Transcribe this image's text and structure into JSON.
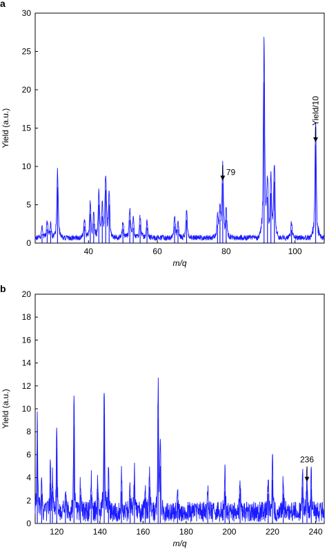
{
  "panels": [
    {
      "label": "a",
      "chart_data": {
        "type": "line",
        "xlabel": "m/q",
        "ylabel": "Yield (a.u.)",
        "xlim": [
          24.5,
          108.5
        ],
        "ylim": [
          0,
          30
        ],
        "xticks": [
          40,
          60,
          80,
          100
        ],
        "yticks": [
          0,
          5,
          10,
          15,
          20,
          25,
          30
        ],
        "grid": false,
        "color": "#1a1aff",
        "baseline": 0.7,
        "noise": 0.35,
        "seed": 7,
        "peaks": [
          {
            "x": 26.5,
            "h": 1.2
          },
          {
            "x": 28,
            "h": 1.8
          },
          {
            "x": 29,
            "h": 1.6
          },
          {
            "x": 31,
            "h": 7.3
          },
          {
            "x": 38.8,
            "h": 2.2
          },
          {
            "x": 40.5,
            "h": 3.8
          },
          {
            "x": 41.5,
            "h": 2.5
          },
          {
            "x": 43,
            "h": 5.0
          },
          {
            "x": 44,
            "h": 3.5
          },
          {
            "x": 45,
            "h": 6.9
          },
          {
            "x": 46,
            "h": 5.0
          },
          {
            "x": 50,
            "h": 1.8
          },
          {
            "x": 52,
            "h": 3.0
          },
          {
            "x": 53,
            "h": 2.0
          },
          {
            "x": 55,
            "h": 2.4
          },
          {
            "x": 57,
            "h": 2.0
          },
          {
            "x": 65,
            "h": 2.2
          },
          {
            "x": 66,
            "h": 1.8
          },
          {
            "x": 68.5,
            "h": 3.0
          },
          {
            "x": 77.5,
            "h": 2.4
          },
          {
            "x": 78.2,
            "h": 3.0
          },
          {
            "x": 79,
            "h": 7.8
          },
          {
            "x": 80,
            "h": 3.0
          },
          {
            "x": 91,
            "h": 21.0
          },
          {
            "x": 92,
            "h": 6.0
          },
          {
            "x": 93,
            "h": 6.5
          },
          {
            "x": 94,
            "h": 8.0
          },
          {
            "x": 99,
            "h": 1.7
          },
          {
            "x": 106,
            "h": 12.8
          }
        ],
        "annotations": [
          {
            "text": "79",
            "x": 79,
            "y": 7.8
          },
          {
            "text": "Yield/10",
            "x": 106,
            "y": 12.8,
            "rotated": true
          }
        ]
      }
    },
    {
      "label": "b",
      "chart_data": {
        "type": "line",
        "xlabel": "m/q",
        "ylabel": "Yield (a.u.)",
        "xlim": [
          110,
          244
        ],
        "ylim": [
          0,
          20
        ],
        "xticks": [
          120,
          140,
          160,
          180,
          200,
          220,
          240
        ],
        "yticks": [
          0,
          2,
          4,
          6,
          8,
          10,
          12,
          14,
          16,
          18,
          20
        ],
        "grid": false,
        "color": "#1a1aff",
        "baseline": 1.0,
        "noise": 0.9,
        "seed": 13,
        "peaks": [
          {
            "x": 111,
            "h": 6.8
          },
          {
            "x": 113,
            "h": 2.5
          },
          {
            "x": 117,
            "h": 3.5
          },
          {
            "x": 118,
            "h": 2.8
          },
          {
            "x": 120,
            "h": 6.6
          },
          {
            "x": 124,
            "h": 2.0
          },
          {
            "x": 128,
            "h": 8.6
          },
          {
            "x": 131,
            "h": 2.5
          },
          {
            "x": 136,
            "h": 2.5
          },
          {
            "x": 139,
            "h": 2.8
          },
          {
            "x": 142,
            "h": 9.6
          },
          {
            "x": 144,
            "h": 3.0
          },
          {
            "x": 150,
            "h": 2.8
          },
          {
            "x": 154,
            "h": 2.2
          },
          {
            "x": 156,
            "h": 3.6
          },
          {
            "x": 161,
            "h": 2.2
          },
          {
            "x": 163,
            "h": 3.2
          },
          {
            "x": 167,
            "h": 9.2
          },
          {
            "x": 168,
            "h": 5.0
          },
          {
            "x": 176,
            "h": 1.8
          },
          {
            "x": 190,
            "h": 1.8
          },
          {
            "x": 198,
            "h": 2.8
          },
          {
            "x": 205,
            "h": 2.6
          },
          {
            "x": 218,
            "h": 2.6
          },
          {
            "x": 220,
            "h": 3.8
          },
          {
            "x": 225,
            "h": 2.6
          },
          {
            "x": 234,
            "h": 3.2
          },
          {
            "x": 236,
            "h": 3.4
          },
          {
            "x": 238,
            "h": 3.0
          }
        ],
        "annotations": [
          {
            "text": "236",
            "x": 236,
            "y": 3.4
          }
        ]
      }
    }
  ]
}
